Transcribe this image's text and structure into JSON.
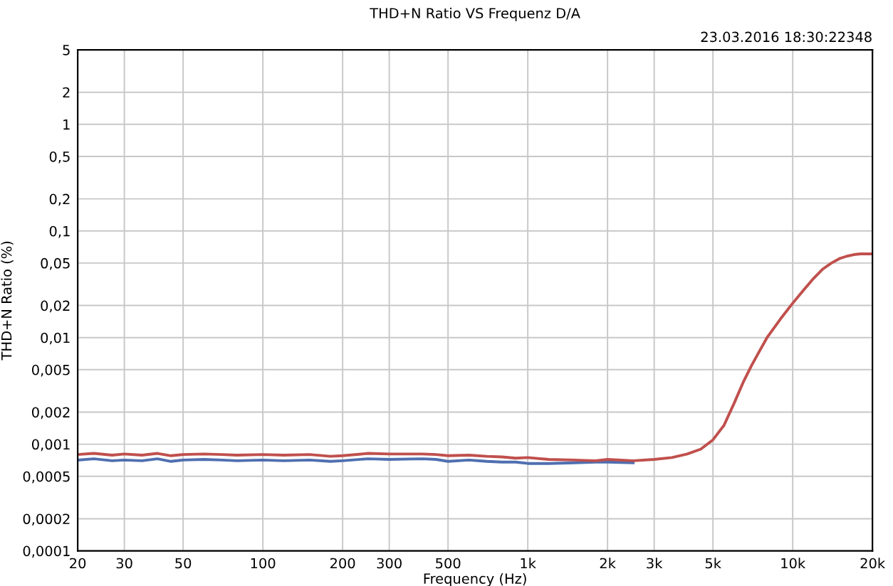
{
  "chart_data": {
    "type": "line",
    "title": "THD+N Ratio VS Frequenz D/A",
    "xlabel": "Frequency (Hz)",
    "ylabel": "THD+N Ratio (%)",
    "annotations": [
      "23.03.2016 18:30:22348"
    ],
    "log": "xy",
    "grid": true,
    "marker": "none",
    "line_style": "solid",
    "x": [
      20,
      23,
      27,
      30,
      35,
      40,
      45,
      50,
      60,
      70,
      80,
      100,
      120,
      150,
      180,
      200,
      250,
      300,
      400,
      450,
      500,
      600,
      700,
      800,
      900,
      1000,
      1200,
      1500,
      1800,
      2000,
      2500,
      3000,
      3500,
      4000,
      4500,
      5000,
      5500,
      6000,
      6500,
      7000,
      7500,
      8000,
      9000,
      10000,
      11000,
      12000,
      13000,
      14000,
      15000,
      16000,
      17000,
      18000,
      20000
    ],
    "series": [
      {
        "color": "#4f6fb0",
        "values": [
          0.00071,
          0.00073,
          0.0007,
          0.00071,
          0.0007,
          0.00073,
          0.00069,
          0.00071,
          0.00072,
          0.00071,
          0.0007,
          0.00071,
          0.0007,
          0.00071,
          0.00069,
          0.0007,
          0.00073,
          0.00072,
          0.00073,
          0.00072,
          0.00069,
          0.00071,
          0.00069,
          0.00068,
          0.00068,
          0.00066,
          0.00066,
          0.00067,
          0.00068,
          0.00068,
          0.00067,
          null,
          null,
          null,
          null,
          null,
          null,
          null,
          null,
          null,
          null,
          null,
          null,
          null,
          null,
          null,
          null,
          null,
          null,
          null,
          null,
          null,
          null
        ]
      },
      {
        "color": "#c0504d",
        "values": [
          0.0008,
          0.00082,
          0.00079,
          0.00081,
          0.00079,
          0.00082,
          0.00078,
          0.0008,
          0.00081,
          0.0008,
          0.00079,
          0.0008,
          0.00079,
          0.0008,
          0.00077,
          0.00078,
          0.00082,
          0.00081,
          0.00081,
          0.0008,
          0.00078,
          0.00079,
          0.00077,
          0.00076,
          0.00074,
          0.00075,
          0.00072,
          0.00071,
          0.0007,
          0.00072,
          0.0007,
          0.00072,
          0.00075,
          0.00081,
          0.0009,
          0.0011,
          0.0015,
          0.0024,
          0.0038,
          0.0055,
          0.0075,
          0.01,
          0.015,
          0.021,
          0.028,
          0.036,
          0.044,
          0.05,
          0.055,
          0.058,
          0.06,
          0.061,
          0.061
        ]
      }
    ],
    "xlim": [
      20,
      20000
    ],
    "ylim": [
      0.0001,
      5
    ],
    "xticks": [
      20,
      30,
      50,
      100,
      200,
      300,
      500,
      {
        "value": 1000,
        "label": "1k"
      },
      {
        "value": 2000,
        "label": "2k"
      },
      {
        "value": 3000,
        "label": "3k"
      },
      {
        "value": 5000,
        "label": "5k"
      },
      {
        "value": 10000,
        "label": "10k"
      },
      {
        "value": 20000,
        "label": "20k"
      }
    ],
    "yticks": [
      5,
      2,
      1,
      {
        "value": 0.5,
        "label": "0,5"
      },
      {
        "value": 0.2,
        "label": "0,2"
      },
      {
        "value": 0.1,
        "label": "0,1"
      },
      {
        "value": 0.05,
        "label": "0,05"
      },
      {
        "value": 0.02,
        "label": "0,02"
      },
      {
        "value": 0.01,
        "label": "0,01"
      },
      {
        "value": 0.005,
        "label": "0,005"
      },
      {
        "value": 0.002,
        "label": "0,002"
      },
      {
        "value": 0.001,
        "label": "0,001"
      },
      {
        "value": 0.0005,
        "label": "0,0005"
      },
      {
        "value": 0.0002,
        "label": "0,0002"
      },
      {
        "value": 0.0001,
        "label": "0,0001"
      }
    ]
  }
}
